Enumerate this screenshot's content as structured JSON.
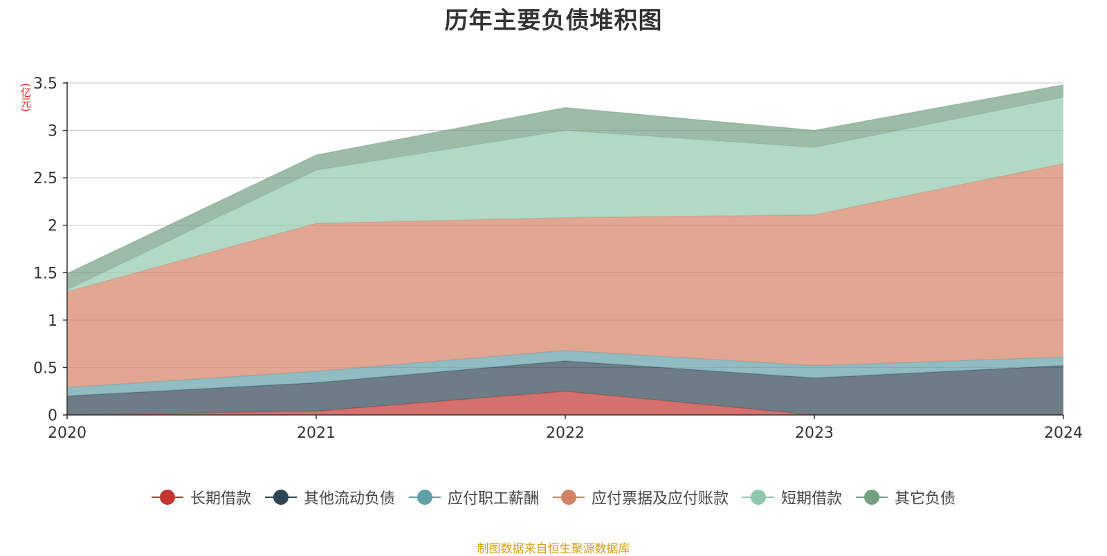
{
  "chart_data": {
    "type": "area",
    "stacked": true,
    "title": "历年主要负债堆积图",
    "ylabel": "(亿元)",
    "xlabel": "",
    "categories": [
      "2020",
      "2021",
      "2022",
      "2023",
      "2024"
    ],
    "ylim": [
      0,
      3.5
    ],
    "yticks": [
      "0",
      "0.5",
      "1",
      "1.5",
      "2",
      "2.5",
      "3",
      "3.5"
    ],
    "ytick_values": [
      0,
      0.5,
      1,
      1.5,
      2,
      2.5,
      3,
      3.5
    ],
    "grid": true,
    "legend_position": "bottom",
    "series": [
      {
        "name": "长期借款",
        "color": "#c23531",
        "values": [
          0.0,
          0.04,
          0.25,
          0.0,
          0.0
        ]
      },
      {
        "name": "其他流动负债",
        "color": "#2f4554",
        "values": [
          0.2,
          0.3,
          0.32,
          0.39,
          0.52
        ]
      },
      {
        "name": "应付职工薪酬",
        "color": "#61a0a8",
        "values": [
          0.09,
          0.12,
          0.11,
          0.13,
          0.09
        ]
      },
      {
        "name": "应付票据及应付账款",
        "color": "#d48265",
        "values": [
          1.01,
          1.56,
          1.4,
          1.59,
          2.04
        ]
      },
      {
        "name": "短期借款",
        "color": "#91c7ae",
        "values": [
          0.02,
          0.56,
          0.92,
          0.71,
          0.7
        ]
      },
      {
        "name": "其它负债",
        "color": "#749f83",
        "values": [
          0.17,
          0.16,
          0.24,
          0.18,
          0.13
        ]
      }
    ]
  },
  "source_text": "制图数据来自恒生聚源数据库"
}
